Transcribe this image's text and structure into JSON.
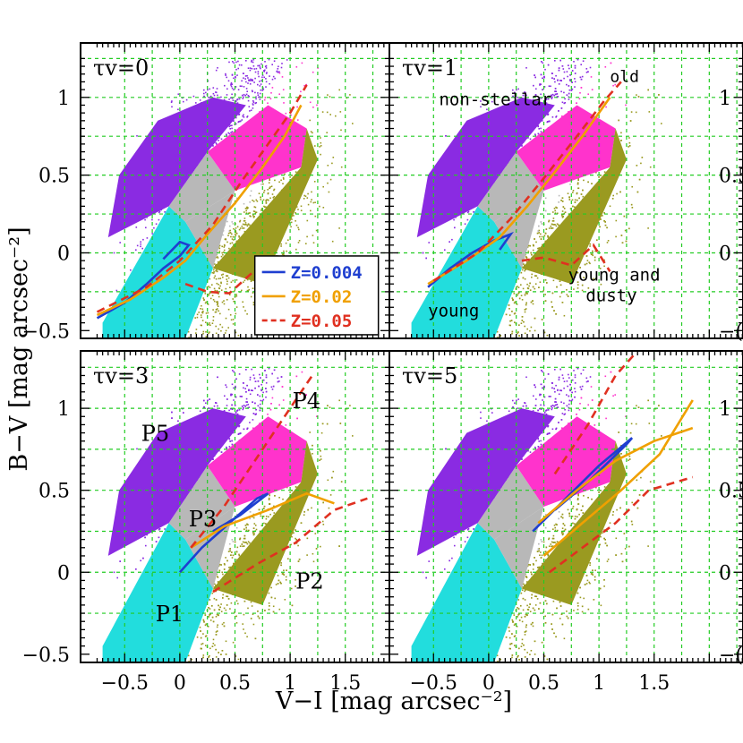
{
  "figure": {
    "xlabel": "V−I  [mag arcsec⁻²]",
    "ylabel": "B−V  [mag arcsec⁻²]",
    "right_ticks_partial": [
      "1",
      "0.5",
      "0",
      "−("
    ]
  },
  "chart_data": [
    {
      "type": "scatter",
      "panel": "top-left",
      "tau_label": "τv=0",
      "xlim": [
        -0.9,
        1.9
      ],
      "ylim": [
        -0.55,
        1.35
      ],
      "x_ticks": [
        -0.5,
        0,
        0.5,
        1,
        1.5
      ],
      "y_ticks": [
        -0.5,
        0,
        0.5,
        1
      ],
      "y_tick_labels": [
        "−0.5",
        "0",
        "0.5",
        "1"
      ],
      "grid": true,
      "legend": {
        "placement": "bottom-right",
        "entries": [
          {
            "label": "Z=0.004",
            "color": "#1f3fd0",
            "dash": "solid"
          },
          {
            "label": "Z=0.02",
            "color": "#f0a000",
            "dash": "solid"
          },
          {
            "label": "Z=0.05",
            "color": "#e03020",
            "dash": "dashed"
          }
        ]
      },
      "annotations": [],
      "series": [
        {
          "name": "Z=0.004",
          "color": "#1f3fd0",
          "dash": "solid",
          "x": [
            -0.75,
            -0.5,
            -0.3,
            -0.15,
            0.0,
            0.08,
            0.0,
            -0.15
          ],
          "y": [
            -0.42,
            -0.32,
            -0.2,
            -0.1,
            -0.02,
            0.05,
            0.07,
            -0.04
          ]
        },
        {
          "name": "Z=0.02",
          "color": "#f0a000",
          "dash": "solid",
          "x": [
            -0.75,
            -0.45,
            -0.15,
            0.05,
            0.25,
            0.5,
            0.75,
            0.95,
            1.1
          ],
          "y": [
            -0.4,
            -0.3,
            -0.16,
            -0.05,
            0.12,
            0.32,
            0.55,
            0.75,
            0.95
          ]
        },
        {
          "name": "Z=0.05",
          "color": "#e03020",
          "dash": "dashed",
          "x": [
            -0.75,
            -0.3,
            0.0,
            0.3,
            0.55,
            0.8,
            1.0,
            1.15
          ],
          "y": [
            -0.38,
            -0.22,
            -0.05,
            0.18,
            0.45,
            0.7,
            0.9,
            1.08
          ]
        },
        {
          "name": "Z=0.05",
          "color": "#e03020",
          "dash": "dashed",
          "x": [
            0.05,
            0.25,
            0.45,
            0.7
          ],
          "y": [
            -0.2,
            -0.25,
            -0.26,
            -0.1
          ]
        }
      ]
    },
    {
      "type": "scatter",
      "panel": "top-right",
      "tau_label": "τv=1",
      "xlim": [
        -0.9,
        1.9
      ],
      "ylim": [
        -0.55,
        1.35
      ],
      "x_ticks": [
        -0.5,
        0,
        0.5,
        1,
        1.5
      ],
      "y_ticks": [
        -0.5,
        0,
        0.5,
        1
      ],
      "grid": true,
      "annotations": [
        "old",
        "non-stellar",
        "young and",
        "dusty",
        "young"
      ],
      "series": [
        {
          "name": "Z=0.004",
          "color": "#1f3fd0",
          "dash": "solid",
          "x": [
            -0.55,
            -0.35,
            -0.15,
            0.05,
            0.2,
            0.1
          ],
          "y": [
            -0.22,
            -0.1,
            0.0,
            0.08,
            0.12,
            0.02
          ]
        },
        {
          "name": "Z=0.02",
          "color": "#f0a000",
          "dash": "solid",
          "x": [
            -0.55,
            -0.2,
            0.1,
            0.35,
            0.6,
            0.85,
            1.1
          ],
          "y": [
            -0.2,
            -0.05,
            0.1,
            0.3,
            0.52,
            0.75,
            1.0
          ]
        },
        {
          "name": "Z=0.05",
          "color": "#e03020",
          "dash": "dashed",
          "x": [
            -0.5,
            -0.1,
            0.2,
            0.5,
            0.8,
            1.05,
            1.2
          ],
          "y": [
            -0.18,
            0.0,
            0.22,
            0.48,
            0.75,
            0.98,
            1.1
          ]
        },
        {
          "name": "Z=0.05",
          "color": "#e03020",
          "dash": "dashed",
          "x": [
            0.3,
            0.5,
            0.75,
            0.95,
            1.1
          ],
          "y": [
            -0.05,
            -0.03,
            -0.08,
            0.05,
            -0.12
          ]
        }
      ]
    },
    {
      "type": "scatter",
      "panel": "bottom-left",
      "tau_label": "τv=3",
      "xlim": [
        -0.9,
        1.9
      ],
      "ylim": [
        -0.55,
        1.35
      ],
      "x_ticks": [
        -0.5,
        0,
        0.5,
        1,
        1.5
      ],
      "x_tick_labels": [
        "−0.5",
        "0",
        "0.5",
        "1",
        "1.5"
      ],
      "y_ticks": [
        -0.5,
        0,
        0.5,
        1
      ],
      "y_tick_labels": [
        "−0.5",
        "0",
        "0.5",
        "1"
      ],
      "grid": true,
      "annotations": [
        "P5",
        "P4",
        "P3",
        "P2",
        "P1"
      ],
      "series": [
        {
          "name": "Z=0.004",
          "color": "#1f3fd0",
          "dash": "solid",
          "x": [
            0.0,
            0.2,
            0.45,
            0.7,
            0.8,
            0.55,
            0.3
          ],
          "y": [
            0.0,
            0.15,
            0.3,
            0.45,
            0.48,
            0.35,
            0.25
          ]
        },
        {
          "name": "Z=0.02",
          "color": "#f0a000",
          "dash": "solid",
          "x": [
            0.1,
            0.4,
            0.8,
            1.15,
            1.4
          ],
          "y": [
            0.15,
            0.28,
            0.38,
            0.48,
            0.42
          ]
        },
        {
          "name": "Z=0.05",
          "color": "#e03020",
          "dash": "dashed",
          "x": [
            0.1,
            0.4,
            0.7,
            0.95,
            1.1,
            1.2
          ],
          "y": [
            0.15,
            0.4,
            0.7,
            0.95,
            1.1,
            1.2
          ]
        },
        {
          "name": "Z=0.05",
          "color": "#e03020",
          "dash": "dashed",
          "x": [
            0.3,
            0.7,
            1.05,
            1.4,
            1.7
          ],
          "y": [
            -0.12,
            0.05,
            0.18,
            0.38,
            0.45
          ]
        }
      ]
    },
    {
      "type": "scatter",
      "panel": "bottom-right",
      "tau_label": "τv=5",
      "xlim": [
        -0.9,
        1.9
      ],
      "ylim": [
        -0.55,
        1.35
      ],
      "x_ticks": [
        -0.5,
        0,
        0.5,
        1,
        1.5
      ],
      "x_tick_labels": [
        "−0.5",
        "0",
        "0.5",
        "1",
        "1.5"
      ],
      "y_ticks": [
        -0.5,
        0,
        0.5,
        1
      ],
      "grid": true,
      "annotations": [],
      "series": [
        {
          "name": "Z=0.004",
          "color": "#1f3fd0",
          "dash": "solid",
          "x": [
            0.4,
            0.7,
            1.0,
            1.3,
            1.25,
            0.9,
            0.6
          ],
          "y": [
            0.25,
            0.45,
            0.65,
            0.82,
            0.78,
            0.55,
            0.38
          ]
        },
        {
          "name": "Z=0.02",
          "color": "#f0a000",
          "dash": "solid",
          "x": [
            0.45,
            0.8,
            1.15,
            1.5,
            1.85
          ],
          "y": [
            0.3,
            0.5,
            0.68,
            0.8,
            0.88
          ]
        },
        {
          "name": "Z=0.02",
          "color": "#f0a000",
          "dash": "solid",
          "x": [
            0.5,
            0.85,
            1.2,
            1.55,
            1.85
          ],
          "y": [
            0.1,
            0.3,
            0.5,
            0.72,
            1.05
          ]
        },
        {
          "name": "Z=0.05",
          "color": "#e03020",
          "dash": "dashed",
          "x": [
            0.6,
            0.9,
            1.15,
            1.35
          ],
          "y": [
            0.6,
            0.9,
            1.2,
            1.35
          ]
        },
        {
          "name": "Z=0.05",
          "color": "#e03020",
          "dash": "dashed",
          "x": [
            0.55,
            0.85,
            1.15,
            1.45,
            1.85
          ],
          "y": [
            0.0,
            0.15,
            0.3,
            0.5,
            0.58
          ]
        }
      ]
    }
  ],
  "colors": {
    "non_stellar": "#8a2be2",
    "young": "#22dddd",
    "middle_grey": "#b8b8b8",
    "old_magenta": "#ff33cc",
    "dusty_olive": "#9a9a20",
    "grid": "#22cc22"
  }
}
